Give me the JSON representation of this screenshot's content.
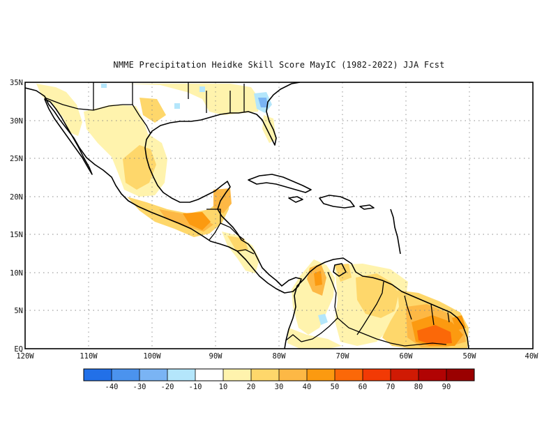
{
  "title": "NMME  Precipitation Heidke Skill Score MayIC (1982-2022) JJA Fcst",
  "map": {
    "lon_range": [
      -120,
      -40
    ],
    "lat_range": [
      0,
      35
    ],
    "lat_labels": [
      "35N",
      "30N",
      "25N",
      "20N",
      "15N",
      "10N",
      "5N",
      "EQ"
    ],
    "lon_labels": [
      "120W",
      "110W",
      "100W",
      "90W",
      "80W",
      "70W",
      "60W",
      "50W",
      "40W"
    ],
    "grid_style": "dotted"
  },
  "colorbar": {
    "bins": [
      {
        "color": "#2270e8"
      },
      {
        "color": "#4b93ee"
      },
      {
        "color": "#7ab4f4"
      },
      {
        "color": "#b4e6fb"
      },
      {
        "color": "#ffffff"
      },
      {
        "color": "#fff3ad"
      },
      {
        "color": "#fed76b"
      },
      {
        "color": "#fdb845"
      },
      {
        "color": "#fc9a10"
      },
      {
        "color": "#fb6808"
      },
      {
        "color": "#f23a05"
      },
      {
        "color": "#d01a04"
      },
      {
        "color": "#b10303"
      },
      {
        "color": "#9a0000"
      }
    ],
    "tick_labels": [
      "-40",
      "-30",
      "-20",
      "-10",
      "10",
      "20",
      "30",
      "40",
      "50",
      "60",
      "70",
      "80",
      "90"
    ]
  }
}
